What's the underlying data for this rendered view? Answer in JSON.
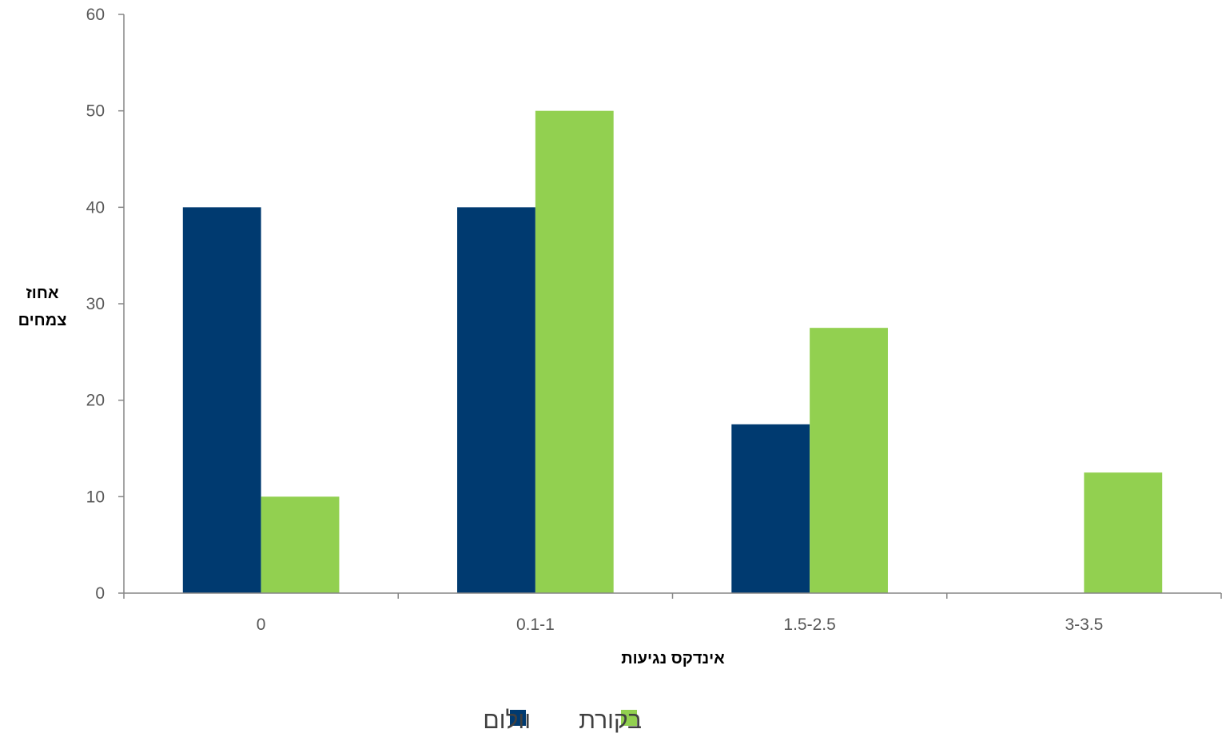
{
  "chart_data": {
    "type": "bar",
    "categories": [
      "0",
      "0.1-1",
      "1.5-2.5",
      "3-3.5"
    ],
    "series": [
      {
        "name": "וולום",
        "color": "#003A70",
        "values": [
          40,
          40,
          17.5,
          0
        ]
      },
      {
        "name": "בקורת",
        "color": "#92D050",
        "values": [
          10,
          50,
          27.5,
          12.5
        ]
      }
    ],
    "xlabel": "אינדקס נגיעות",
    "ylabel": [
      "אחוז",
      "צמחים"
    ],
    "ylim": [
      0,
      60
    ],
    "yticks": [
      "0",
      "10",
      "20",
      "30",
      "40",
      "50",
      "60"
    ],
    "grid": false,
    "legend_position": "bottom"
  }
}
